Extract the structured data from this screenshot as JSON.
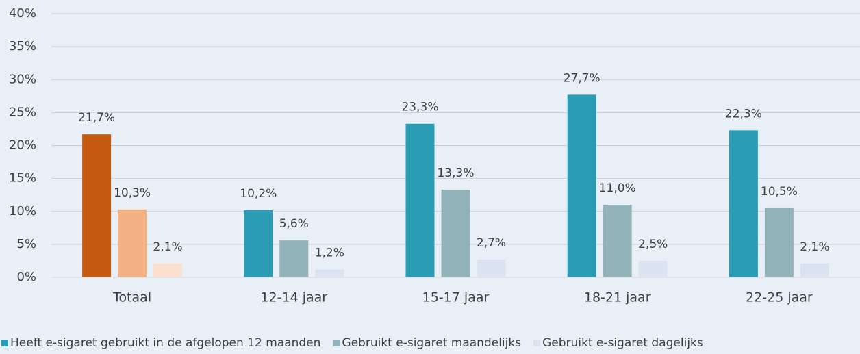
{
  "chart_data": {
    "type": "bar",
    "categories": [
      "Totaal",
      "12-14 jaar",
      "15-17 jaar",
      "18-21 jaar",
      "22-25 jaar"
    ],
    "series": [
      {
        "name": "Heeft e-sigaret gebruikt in de afgelopen 12 maanden",
        "color": "#2a9db5",
        "colors": [
          "#c55a11",
          "#2a9db5",
          "#2a9db5",
          "#2a9db5",
          "#2a9db5"
        ],
        "values": [
          21.7,
          10.2,
          23.3,
          27.7,
          22.3
        ],
        "value_labels": [
          "21,7%",
          "10,2%",
          "23,3%",
          "27,7%",
          "22,3%"
        ]
      },
      {
        "name": "Gebruikt e-sigaret maandelijks",
        "color": "#93b3bb",
        "colors": [
          "#f4b183",
          "#93b3bb",
          "#93b3bb",
          "#93b3bb",
          "#93b3bb"
        ],
        "values": [
          10.3,
          5.6,
          13.3,
          11.0,
          10.5
        ],
        "value_labels": [
          "10,3%",
          "5,6%",
          "13,3%",
          "11,0%",
          "10,5%"
        ]
      },
      {
        "name": "Gebruikt e-sigaret dagelijks",
        "color": "#dbe3f3",
        "colors": [
          "#fbe0cf",
          "#dbe3f3",
          "#dbe3f3",
          "#dbe3f3",
          "#dbe3f3"
        ],
        "values": [
          2.1,
          1.2,
          2.7,
          2.5,
          2.1
        ],
        "value_labels": [
          "2,1%",
          "1,2%",
          "2,7%",
          "2,5%",
          "2,1%"
        ]
      }
    ],
    "ylim": [
      0,
      40
    ],
    "yticks": [
      {
        "value": 0,
        "label": "0%"
      },
      {
        "value": 5,
        "label": "5%"
      },
      {
        "value": 10,
        "label": "10%"
      },
      {
        "value": 15,
        "label": "15%"
      },
      {
        "value": 20,
        "label": "20%"
      },
      {
        "value": 25,
        "label": "25%"
      },
      {
        "value": 30,
        "label": "30%"
      },
      {
        "value": 35,
        "label": "35%"
      },
      {
        "value": 40,
        "label": "40%"
      }
    ],
    "grid": true,
    "legend": "bottom"
  }
}
